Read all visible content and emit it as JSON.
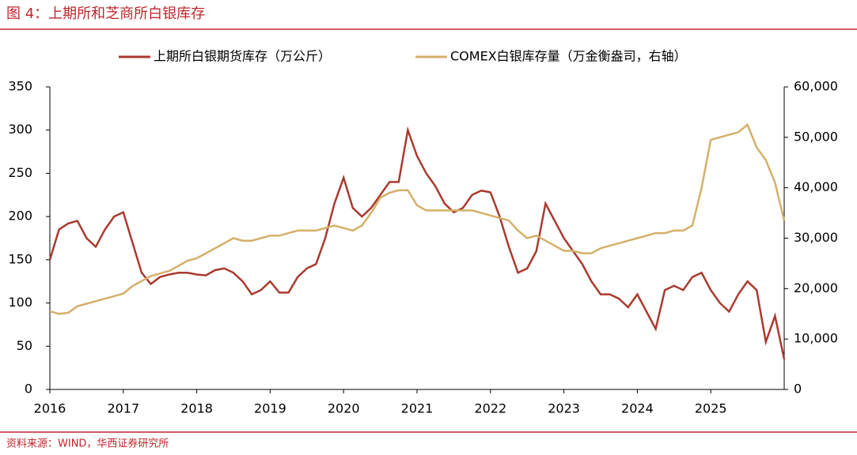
{
  "title": "图 4：上期所和芝商所白银库存",
  "source": "资料来源：WIND，华西证券研究所",
  "chart_data": {
    "type": "line",
    "x": [
      2016,
      2016.125,
      2016.25,
      2016.375,
      2016.5,
      2016.625,
      2016.75,
      2016.875,
      2017,
      2017.125,
      2017.25,
      2017.375,
      2017.5,
      2017.625,
      2017.75,
      2017.875,
      2018,
      2018.125,
      2018.25,
      2018.375,
      2018.5,
      2018.625,
      2018.75,
      2018.875,
      2019,
      2019.125,
      2019.25,
      2019.375,
      2019.5,
      2019.625,
      2019.75,
      2019.875,
      2020,
      2020.125,
      2020.25,
      2020.375,
      2020.5,
      2020.625,
      2020.75,
      2020.875,
      2021,
      2021.125,
      2021.25,
      2021.375,
      2021.5,
      2021.625,
      2021.75,
      2021.875,
      2022,
      2022.125,
      2022.25,
      2022.375,
      2022.5,
      2022.625,
      2022.75,
      2022.875,
      2023,
      2023.125,
      2023.25,
      2023.375,
      2023.5,
      2023.625,
      2023.75,
      2023.875,
      2024,
      2024.125,
      2024.25,
      2024.375,
      2024.5,
      2024.625,
      2024.75,
      2024.875,
      2025,
      2025.125,
      2025.25,
      2025.375,
      2025.5,
      2025.625,
      2025.75,
      2025.875,
      2026
    ],
    "series": [
      {
        "name": "上期所白银期货库存（万公斤）",
        "color": "#a93a2e",
        "values": [
          150,
          185,
          192,
          195,
          175,
          165,
          185,
          200,
          205,
          170,
          135,
          122,
          130,
          133,
          135,
          135,
          133,
          132,
          138,
          140,
          135,
          125,
          110,
          115,
          125,
          112,
          112,
          130,
          140,
          145,
          175,
          215,
          245,
          210,
          200,
          210,
          225,
          240,
          240,
          300,
          270,
          250,
          235,
          215,
          205,
          210,
          225,
          230,
          228,
          200,
          165,
          135,
          140,
          160,
          215,
          195,
          175,
          160,
          145,
          125,
          110,
          110,
          105,
          95,
          110,
          90,
          70,
          115,
          120,
          115,
          130,
          135,
          115,
          100,
          90,
          110,
          125,
          115,
          55,
          85,
          35
        ]
      },
      {
        "name": "COMEX白银库存量（万金衡盎司，右轴）",
        "color": "#d4b06a",
        "axis": "y2",
        "values": [
          15500,
          15000,
          15200,
          16500,
          17000,
          17500,
          18000,
          18500,
          19000,
          20500,
          21500,
          22500,
          23000,
          23500,
          24500,
          25500,
          26000,
          27000,
          28000,
          29000,
          30000,
          29500,
          29500,
          30000,
          30500,
          30500,
          31000,
          31500,
          31500,
          31500,
          32000,
          32500,
          32000,
          31500,
          32500,
          35000,
          38000,
          39000,
          39500,
          39500,
          36500,
          35500,
          35500,
          35500,
          35500,
          35500,
          35500,
          35000,
          34500,
          34000,
          33500,
          31500,
          30000,
          30500,
          29500,
          28500,
          27500,
          27500,
          27000,
          27000,
          28000,
          28500,
          29000,
          29500,
          30000,
          30500,
          31000,
          31000,
          31500,
          31500,
          32500,
          40000,
          49500,
          50000,
          50500,
          51000,
          52500,
          48000,
          45500,
          41000,
          33500
        ]
      }
    ],
    "xlim": [
      2016,
      2026
    ],
    "xticks": [
      2016,
      2017,
      2018,
      2019,
      2020,
      2021,
      2022,
      2023,
      2024,
      2025
    ],
    "ylim": [
      0,
      350
    ],
    "yticks": [
      0,
      50,
      100,
      150,
      200,
      250,
      300,
      350
    ],
    "y2lim": [
      0,
      60000
    ],
    "y2ticks": [
      0,
      {
        "value": 10000,
        "label": "10,000"
      },
      {
        "value": 20000,
        "label": "20,000"
      },
      {
        "value": 30000,
        "label": "30,000"
      },
      {
        "value": 40000,
        "label": "40,000"
      },
      {
        "value": 50000,
        "label": "50,000"
      },
      {
        "value": 60000,
        "label": "60,000"
      }
    ],
    "legend": "top"
  }
}
